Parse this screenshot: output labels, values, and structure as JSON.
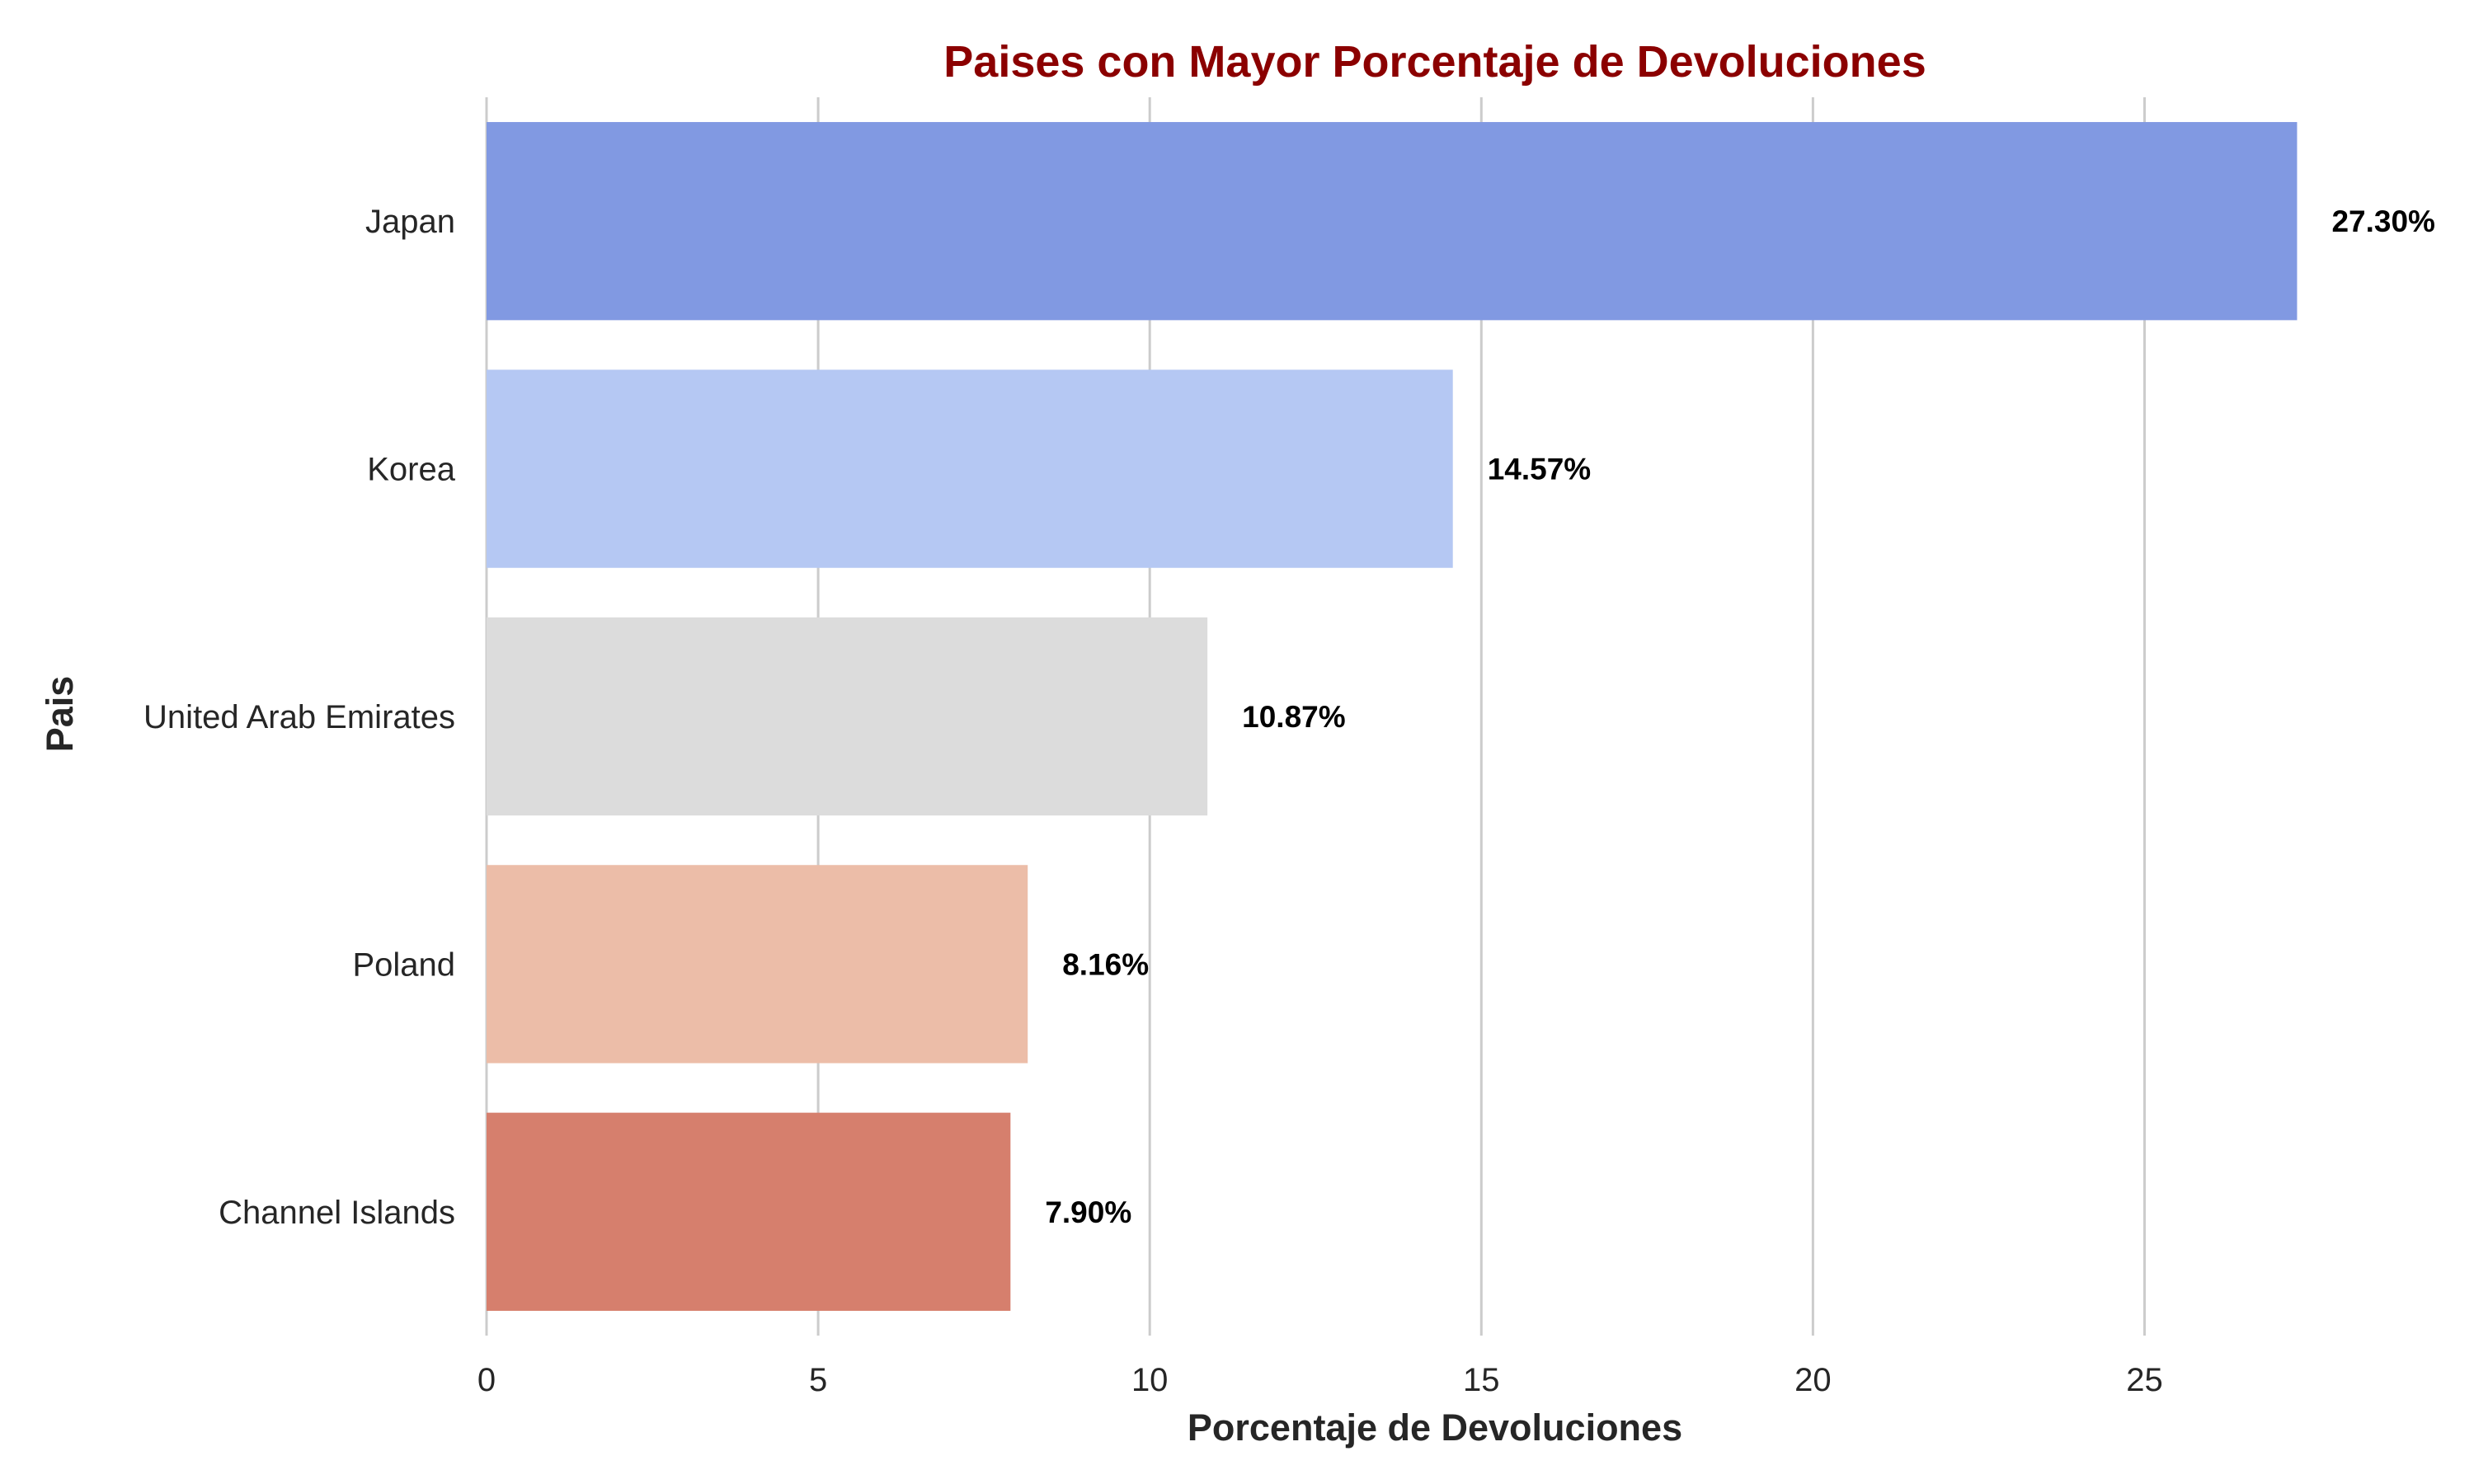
{
  "chart_data": {
    "type": "bar",
    "orientation": "horizontal",
    "title": "Paises con Mayor Porcentaje de Devoluciones",
    "xlabel": "Porcentaje de Devoluciones",
    "ylabel": "Pais",
    "categories": [
      "Japan",
      "Korea",
      "United Arab Emirates",
      "Poland",
      "Channel Islands"
    ],
    "values": [
      27.3,
      14.57,
      10.87,
      8.16,
      7.9
    ],
    "value_labels": [
      "27.30%",
      "14.57%",
      "10.87%",
      "8.16%",
      "7.90%"
    ],
    "xlim": [
      0,
      28.6
    ],
    "xticks": [
      0,
      5,
      10,
      15,
      20,
      25
    ],
    "xtick_labels": [
      "0",
      "5",
      "10",
      "15",
      "20",
      "25"
    ],
    "grid": "vertical",
    "legend": "none",
    "colors": {
      "title": "#8b0000",
      "bars": [
        "#8199e2",
        "#b5c8f3",
        "#dcdcdc",
        "#ecbda8",
        "#d67f6d"
      ]
    }
  }
}
